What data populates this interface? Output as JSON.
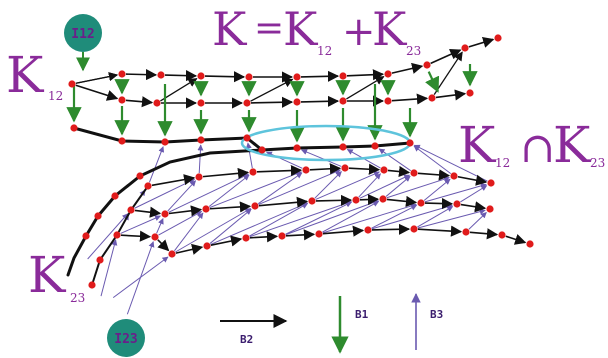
{
  "formula": {
    "k": "K",
    "eq": "=",
    "plus": "+",
    "sub12": "12",
    "sub23": "23"
  },
  "labels": {
    "k12": {
      "k": "K",
      "sub": "12"
    },
    "k23": {
      "k": "K",
      "sub": "23"
    },
    "intersection": {
      "k": "K",
      "cap": "∩",
      "sub12": "12",
      "sub23": "23"
    }
  },
  "nodes": {
    "top": "I12",
    "bottom": "I23"
  },
  "legend": {
    "b2": "B2",
    "b1": "B1",
    "b3": "B3"
  },
  "colors": {
    "black_edge": "#111111",
    "green_edge": "#2e8b2e",
    "purple_edge": "#6a5ab0",
    "vertex": "#e01b1b",
    "node_fill": "#1f8c7a",
    "ellipse": "#5ec4dc",
    "handwriting": "#8a2b9a"
  }
}
